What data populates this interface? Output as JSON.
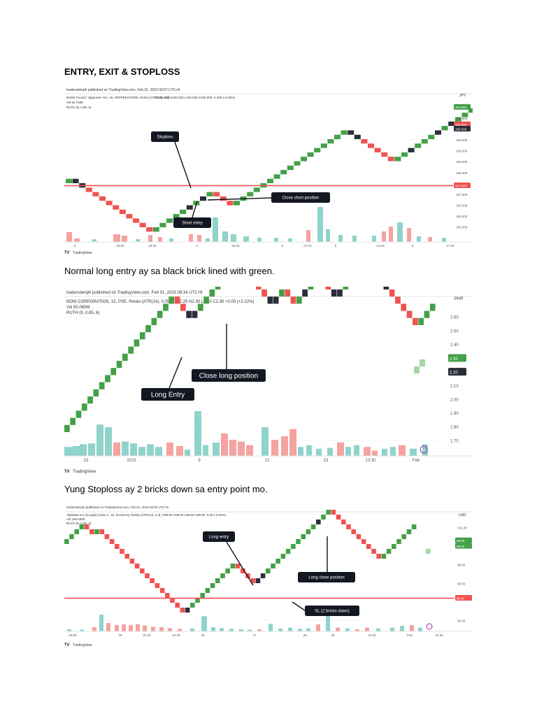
{
  "heading": "ENTRY, EXIT & STOPLOSS",
  "captions": [
    "Normal long entry ay sa black brick lined with green.",
    "Yung Stoploss ay 2 bricks down sa entry point mo."
  ],
  "colors": {
    "up": "#43a047",
    "down": "#ef5350",
    "hold": "#2a2e39",
    "level": "#ef5350",
    "vol_up": "#8fd3cb",
    "vol_down": "#f4a3a0"
  },
  "charts": [
    {
      "published": "tradersdenph published on TradingView.com, Feb 01, 2023 09:57 UTC+8",
      "symbol_line": "British Pound / Japanese Yen, 15, PEPPERSTONE, Renko [ATR(14), 0.2]",
      "ohlc": "O160.200  H160.200  L160.000  C160.000  -0.400 (-0.25%)",
      "vol_line": "Vol  62.759K",
      "ruth_line": "RUTH (9, 0.85, 6)",
      "currency": "JPY",
      "tradingview_label": "TradingView",
      "ticks_y": [
        {
          "v": 160.5,
          "t": "160.500"
        },
        {
          "v": 159.5,
          "t": "159.500"
        },
        {
          "v": 159.0,
          "t": "159.000"
        },
        {
          "v": 158.5,
          "t": "158.500"
        },
        {
          "v": 158.0,
          "t": "158.000"
        },
        {
          "v": 157.0,
          "t": "157.000"
        },
        {
          "v": 156.5,
          "t": "156.500"
        },
        {
          "v": 156.0,
          "t": "156.000"
        },
        {
          "v": 155.5,
          "t": "155.500"
        }
      ],
      "badges": [
        {
          "v": 161.0,
          "t": "161.000",
          "c": "#43a047"
        },
        {
          "v": 160.2,
          "t": "160.200",
          "c": "#ef5350"
        },
        {
          "v": 160.0,
          "t": "160.000",
          "c": "#2a2e39"
        },
        {
          "v": 157.4,
          "t": "157.400",
          "c": "#ef5350"
        }
      ],
      "ticks_x": [
        "3",
        "16:00",
        "19:30",
        "4",
        "22:45",
        "5",
        "07:30",
        "6",
        "14:15",
        "9",
        "17:30"
      ],
      "level": 157.4,
      "annotations": [
        {
          "text": "Stoploss"
        },
        {
          "text": "Close  short position"
        },
        {
          "text": "Short entry"
        }
      ]
    },
    {
      "published": "tradersdenph published on TradingView.com, Feb 01, 2023 09:34 UTC+8",
      "symbol_line": "NOW CORPORATION, 15, PSE, Renko [ATR(14), 0.05]",
      "ohlc": "O2.25  H2.30  L2.25  C2.30  +0.05 (+2.22%)",
      "vol_line": "Vol  50.065M",
      "ruth_line": "RUTH (9, 0.85, 6)",
      "currency": "PHP",
      "tradingview_label": "TradingView",
      "ticks_y": [
        {
          "v": 2.6,
          "t": "2.60"
        },
        {
          "v": 2.5,
          "t": "2.50"
        },
        {
          "v": 2.4,
          "t": "2.40"
        },
        {
          "v": 2.1,
          "t": "2.10"
        },
        {
          "v": 2.0,
          "t": "2.00"
        },
        {
          "v": 1.9,
          "t": "1.90"
        },
        {
          "v": 1.8,
          "t": "1.80"
        },
        {
          "v": 1.7,
          "t": "1.70"
        }
      ],
      "badges": [
        {
          "v": 2.3,
          "t": "2.30",
          "c": "#43a047"
        },
        {
          "v": 2.2,
          "t": "2.20",
          "c": "#2a2e39"
        }
      ],
      "ticks_x": [
        "23",
        "2023",
        "9",
        "12",
        "23",
        "13:30",
        "Feb"
      ],
      "annotations": [
        {
          "text": "Close long position"
        },
        {
          "text": "Long Entry"
        }
      ]
    },
    {
      "published": "tradersdenph published on TradingView.com, Feb 01, 2023 09:30 UTC+8",
      "symbol_line": "Alphabet Inc (Google) Class C, 15, NASDAQ, Renko [ATR(14), 0.3]",
      "ohlc": "O99.60  H99.90  L99.60  C99.90  -0.20 (-0.20%)",
      "vol_line": "Vol  186.639K",
      "ruth_line": "RUTH (9, 0.85, 6)",
      "currency": "USD",
      "tradingview_label": "TradingView",
      "ticks_y": [
        {
          "v": 101.0,
          "t": "101.00"
        },
        {
          "v": 99.0,
          "t": "99.00"
        },
        {
          "v": 98.0,
          "t": "98.00"
        },
        {
          "v": 96.0,
          "t": "96.00"
        }
      ],
      "badges": [
        {
          "v": 100.3,
          "t": "99.90",
          "c": "#43a047"
        },
        {
          "v": 100.0,
          "t": "99.60",
          "c": "#43a047"
        },
        {
          "v": 97.2,
          "t": "96.87",
          "c": "#ef5350"
        }
      ],
      "ticks_x": [
        "00:00",
        "25",
        "22:30",
        "22:30",
        "26",
        "27",
        "28",
        "30",
        "21:30",
        "Feb",
        "22:45"
      ],
      "level": 97.2,
      "annotations": [
        {
          "text": "Long entry"
        },
        {
          "text": "Long close position"
        },
        {
          "text": "SL (2 bricks down)"
        }
      ]
    }
  ]
}
